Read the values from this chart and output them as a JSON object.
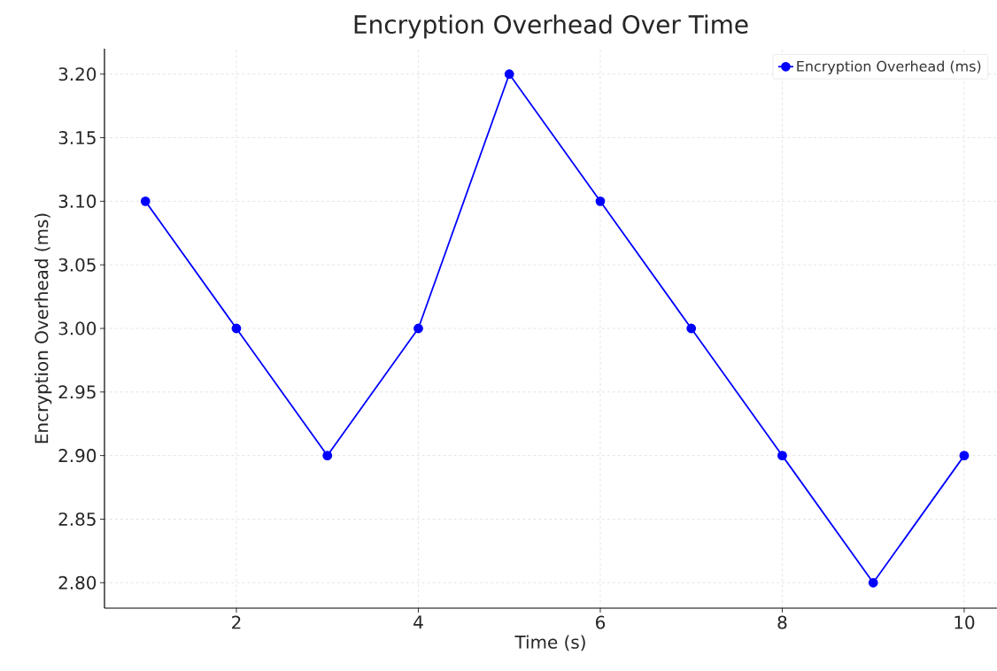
{
  "chart_data": {
    "type": "line",
    "title": "Encryption Overhead Over Time",
    "xlabel": "Time (s)",
    "ylabel": "Encryption Overhead (ms)",
    "x": [
      1,
      2,
      3,
      4,
      5,
      6,
      7,
      8,
      9,
      10
    ],
    "series": [
      {
        "name": "Encryption Overhead (ms)",
        "color": "#0000ff",
        "values": [
          3.1,
          3.0,
          2.9,
          3.0,
          3.2,
          3.1,
          3.0,
          2.9,
          2.8,
          2.9
        ]
      }
    ],
    "xlim": [
      0.55,
      10.36
    ],
    "ylim": [
      2.78,
      3.22
    ],
    "xticks": [
      2,
      4,
      6,
      8,
      10
    ],
    "yticks": [
      {
        "value": 2.8,
        "label": "2.80"
      },
      {
        "value": 2.85,
        "label": "2.85"
      },
      {
        "value": 2.9,
        "label": "2.90"
      },
      {
        "value": 2.95,
        "label": "2.95"
      },
      {
        "value": 3.0,
        "label": "3.00"
      },
      {
        "value": 3.05,
        "label": "3.05"
      },
      {
        "value": 3.1,
        "label": "3.10"
      },
      {
        "value": 3.15,
        "label": "3.15"
      },
      {
        "value": 3.2,
        "label": "3.20"
      }
    ],
    "grid": true,
    "legend": "top right",
    "marker": "circle",
    "line_style": "solid"
  }
}
